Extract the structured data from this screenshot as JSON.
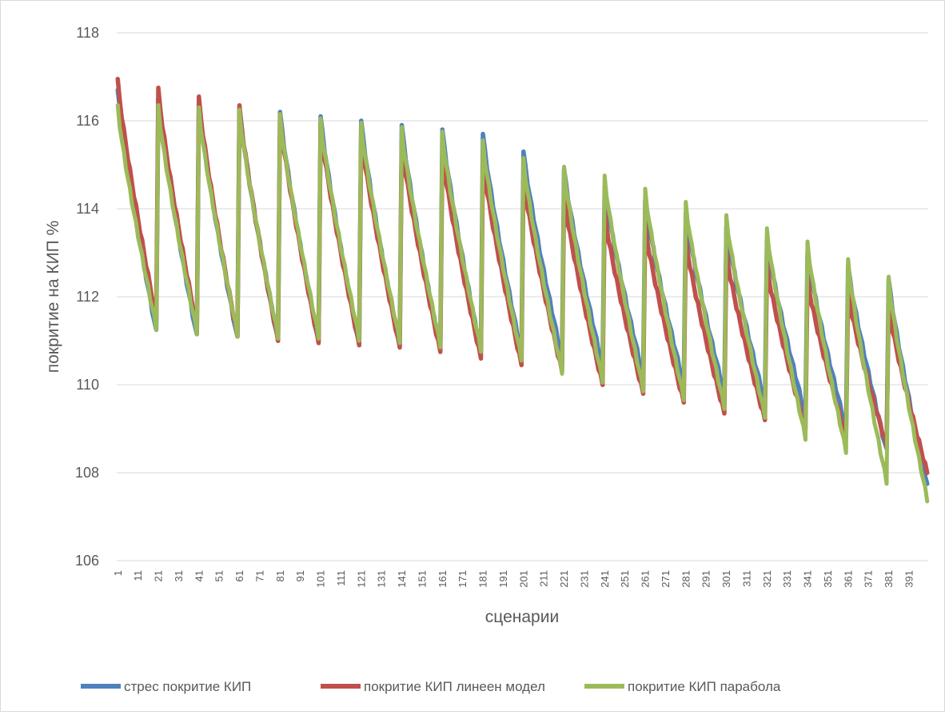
{
  "chart_data": {
    "type": "line",
    "title": "",
    "xlabel": "сценарии",
    "ylabel": "покритие на КИП %",
    "ylim": [
      106,
      118
    ],
    "yticks": [
      106,
      108,
      110,
      112,
      114,
      116,
      118
    ],
    "x_tick_labels": [
      "1",
      "11",
      "21",
      "31",
      "41",
      "51",
      "61",
      "71",
      "81",
      "91",
      "101",
      "111",
      "121",
      "131",
      "141",
      "151",
      "161",
      "171",
      "181",
      "191",
      "201",
      "211",
      "221",
      "231",
      "241",
      "251",
      "261",
      "271",
      "281",
      "291",
      "301",
      "311",
      "321",
      "331",
      "341",
      "351",
      "361",
      "371",
      "381",
      "391"
    ],
    "n_points": 400,
    "gridlines": true,
    "legend_position": "bottom",
    "series": [
      {
        "name": "стрес покритие КИП",
        "color": "#4f81bd",
        "segment_start": [
          116.7,
          116.5,
          116.4,
          116.3,
          116.2,
          116.1,
          116.0,
          115.9,
          115.8,
          115.7,
          115.3,
          114.9,
          114.5,
          114.2,
          113.9,
          113.6,
          113.3,
          113.0,
          112.7,
          112.4
        ],
        "segment_end": [
          111.2,
          111.1,
          111.05,
          111.0,
          110.95,
          110.9,
          110.85,
          110.8,
          110.75,
          110.7,
          110.6,
          110.4,
          110.2,
          110.0,
          109.8,
          109.6,
          109.3,
          109.0,
          108.5,
          107.7
        ]
      },
      {
        "name": "покритие КИП линеен модел",
        "color": "#c0504d",
        "segment_start": [
          116.9,
          116.7,
          116.5,
          116.3,
          116.1,
          115.9,
          115.7,
          115.5,
          115.3,
          115.1,
          114.7,
          114.3,
          113.9,
          113.6,
          113.3,
          113.0,
          112.7,
          112.4,
          112.1,
          111.8
        ],
        "segment_end": [
          111.5,
          111.3,
          111.1,
          111.0,
          110.95,
          110.9,
          110.85,
          110.75,
          110.6,
          110.45,
          110.3,
          110.0,
          109.8,
          109.6,
          109.35,
          109.2,
          109.0,
          108.8,
          108.6,
          108.0
        ]
      },
      {
        "name": "покритие КИП парабола",
        "color": "#9bbb59",
        "segment_start": [
          116.3,
          116.3,
          116.25,
          116.2,
          116.1,
          116.0,
          115.9,
          115.8,
          115.7,
          115.5,
          115.1,
          114.9,
          114.7,
          114.4,
          114.1,
          113.8,
          113.5,
          113.2,
          112.8,
          112.4
        ],
        "segment_end": [
          111.3,
          111.2,
          111.15,
          111.1,
          111.1,
          111.05,
          111.0,
          110.9,
          110.8,
          110.6,
          110.3,
          110.1,
          109.9,
          109.7,
          109.5,
          109.3,
          108.8,
          108.5,
          107.8,
          107.4
        ]
      }
    ]
  }
}
